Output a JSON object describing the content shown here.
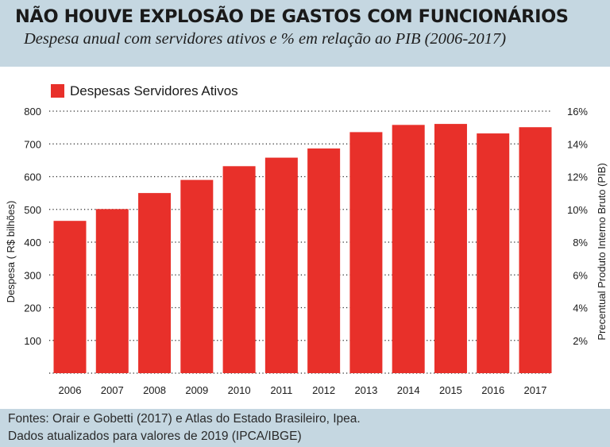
{
  "header": {
    "title": "NÃO HOUVE EXPLOSÃO DE GASTOS COM FUNCIONÁRIOS",
    "subtitle": "Despesa anual com servidores ativos e % em relação ao PIB (2006-2017)"
  },
  "footer": {
    "line1": "Fontes: Orair e Gobetti (2017) e Atlas do Estado Brasileiro, Ipea.",
    "line2": "Dados atualizados para valores de 2019 (IPCA/IBGE)"
  },
  "colors": {
    "bar": "#e8302a",
    "background_band": "#c5d7e1",
    "grid": "#222222"
  },
  "chart_data": {
    "type": "bar",
    "title": "NÃO HOUVE EXPLOSÃO DE GASTOS COM FUNCIONÁRIOS",
    "subtitle": "Despesa anual com servidores ativos e % em relação ao PIB (2006-2017)",
    "categories": [
      "2006",
      "2007",
      "2008",
      "2009",
      "2010",
      "2011",
      "2012",
      "2013",
      "2014",
      "2015",
      "2016",
      "2017"
    ],
    "series": [
      {
        "name": "Despesas Servidores Ativos",
        "values": [
          465,
          501,
          550,
          590,
          632,
          658,
          686,
          736,
          758,
          761,
          732,
          751
        ]
      }
    ],
    "ylabel": "Despesa ( R$ bilhões)",
    "y2label": "Precentual Produto Interno Bruto (PIB)",
    "ylim": [
      0,
      800
    ],
    "yticks": [
      "100",
      "200",
      "300",
      "400",
      "500",
      "600",
      "700",
      "800"
    ],
    "y2ticks": [
      "2%",
      "4%",
      "6%",
      "8%",
      "10%",
      "12%",
      "14%",
      "16%"
    ],
    "legend": "top-left",
    "grid": "horizontal dotted"
  }
}
